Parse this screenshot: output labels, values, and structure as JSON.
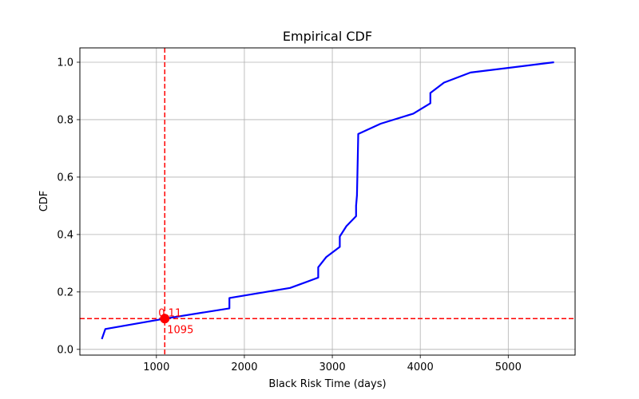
{
  "chart_data": {
    "type": "line",
    "title": "Empirical CDF",
    "xlabel": "Black Risk Time (days)",
    "ylabel": "CDF",
    "xlim": [
      130,
      5760
    ],
    "ylim": [
      -0.02,
      1.05
    ],
    "xticks": [
      1000,
      2000,
      3000,
      4000,
      5000
    ],
    "yticks": [
      0.0,
      0.2,
      0.4,
      0.6,
      0.8,
      1.0
    ],
    "ytick_labels": [
      "0.0",
      "0.2",
      "0.4",
      "0.6",
      "0.8",
      "1.0"
    ],
    "grid": true,
    "series": [
      {
        "color": "#0000ff",
        "x": [
          380,
          420,
          1095,
          1830,
          1830,
          2520,
          2840,
          2840,
          2930,
          3085,
          3085,
          3160,
          3270,
          3270,
          3280,
          3290,
          3295,
          3550,
          3920,
          4115,
          4115,
          4270,
          4570,
          5520
        ],
        "y": [
          0.036,
          0.071,
          0.107,
          0.143,
          0.179,
          0.214,
          0.25,
          0.286,
          0.321,
          0.357,
          0.393,
          0.429,
          0.464,
          0.5,
          0.536,
          0.679,
          0.75,
          0.786,
          0.821,
          0.857,
          0.893,
          0.929,
          0.964,
          1.0
        ]
      }
    ],
    "annotations": {
      "color": "#ff0000",
      "vline_x": 1095,
      "hline_y": 0.107,
      "point": [
        1095,
        0.107
      ],
      "y_text": "0.11",
      "x_text": "1095"
    }
  }
}
